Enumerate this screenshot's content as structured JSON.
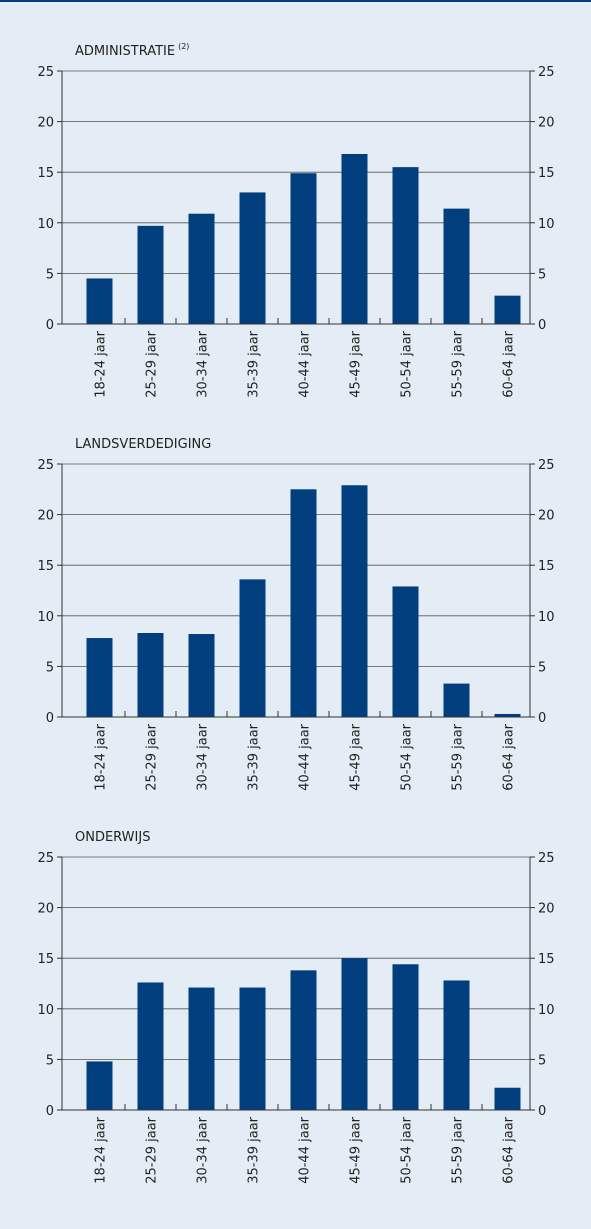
{
  "chart_data": [
    {
      "type": "bar",
      "title": "ADMINISTRATIE",
      "title_superscript": "(2)",
      "categories": [
        "18-24 jaar",
        "25-29 jaar",
        "30-34 jaar",
        "35-39 jaar",
        "40-44 jaar",
        "45-49 jaar",
        "50-54 jaar",
        "55-59 jaar",
        "60-64 jaar"
      ],
      "values": [
        4.5,
        9.7,
        10.9,
        13.0,
        14.9,
        16.8,
        15.5,
        11.4,
        2.8
      ],
      "color": "#003e7e",
      "ylim": [
        0,
        25
      ],
      "yticks": [
        0,
        5,
        10,
        15,
        20,
        25
      ],
      "grid": true
    },
    {
      "type": "bar",
      "title": "LANDSVERDEDIGING",
      "categories": [
        "18-24 jaar",
        "25-29 jaar",
        "30-34 jaar",
        "35-39 jaar",
        "40-44 jaar",
        "45-49 jaar",
        "50-54 jaar",
        "55-59 jaar",
        "60-64 jaar"
      ],
      "values": [
        7.8,
        8.3,
        8.2,
        13.6,
        22.5,
        22.9,
        12.9,
        3.3,
        0.3
      ],
      "color": "#003e7e",
      "ylim": [
        0,
        25
      ],
      "yticks": [
        0,
        5,
        10,
        15,
        20,
        25
      ],
      "grid": true
    },
    {
      "type": "bar",
      "title": "ONDERWIJS",
      "categories": [
        "18-24 jaar",
        "25-29 jaar",
        "30-34 jaar",
        "35-39 jaar",
        "40-44 jaar",
        "45-49 jaar",
        "50-54 jaar",
        "55-59 jaar",
        "60-64 jaar"
      ],
      "values": [
        4.8,
        12.6,
        12.1,
        12.1,
        13.8,
        15.0,
        14.4,
        12.8,
        2.2
      ],
      "color": "#003e7e",
      "ylim": [
        0,
        25
      ],
      "yticks": [
        0,
        5,
        10,
        15,
        20,
        25
      ],
      "grid": true
    }
  ]
}
